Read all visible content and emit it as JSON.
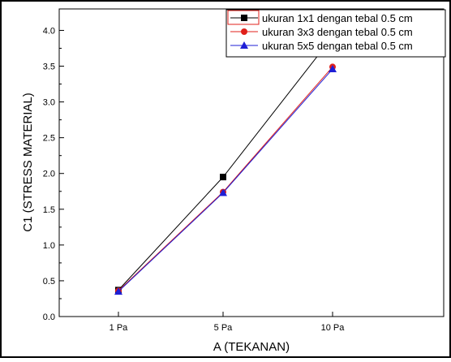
{
  "chart_data": {
    "type": "line",
    "title": "",
    "xlabel": "A (TEKANAN)",
    "ylabel": "C1 (STRESS MATERIAL)",
    "categories": [
      "1 Pa",
      "5 Pa",
      "10 Pa"
    ],
    "ylim": [
      0.0,
      4.3
    ],
    "yticks": [
      "0.0",
      "0.5",
      "1.0",
      "1.5",
      "2.0",
      "2.5",
      "3.0",
      "3.5",
      "4.0"
    ],
    "grid": false,
    "legend_position": "top-right",
    "series": [
      {
        "name": "ukuran 1x1 dengan tebal 0.5 cm",
        "color": "#000000",
        "marker": "square",
        "values": [
          0.37,
          1.95,
          3.91
        ]
      },
      {
        "name": "ukuran 3x3 dengan tebal 0.5 cm",
        "color": "#e0201b",
        "marker": "circle",
        "values": [
          0.36,
          1.74,
          3.49
        ]
      },
      {
        "name": "ukuran 5x5 dengan tebal 0.5 cm",
        "color": "#1f1fd6",
        "marker": "triangle",
        "values": [
          0.35,
          1.73,
          3.46
        ]
      }
    ]
  }
}
